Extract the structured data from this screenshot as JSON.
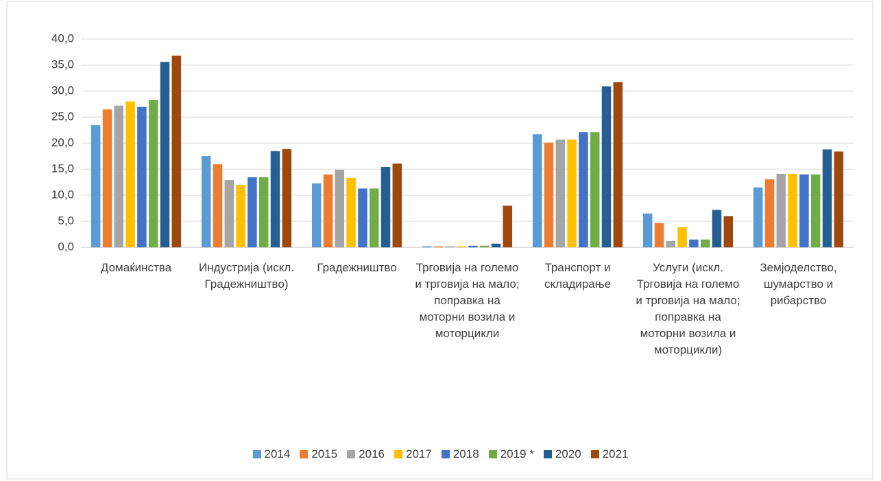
{
  "chart_data": {
    "type": "bar",
    "categories": [
      "Домаќинства",
      "Индустрија (искл. Градежништво)",
      "Градежништво",
      "Трговија на големо и трговија на мало; поправка на моторни возила и моторцикли",
      "Транспорт и складирање",
      "Услуги (искл. Трговија на големо и трговија на мало; поправка на моторни возила и моторцикли)",
      "Земјоделство, шумарство и рибарство"
    ],
    "series": [
      {
        "name": "2014",
        "color": "#5b9bd5",
        "values": [
          23.5,
          17.5,
          12.3,
          0.2,
          21.7,
          6.5,
          11.5
        ]
      },
      {
        "name": "2015",
        "color": "#ed7d31",
        "values": [
          26.5,
          16.0,
          14.0,
          0.2,
          20.1,
          4.7,
          13.1
        ]
      },
      {
        "name": "2016",
        "color": "#a5a5a5",
        "values": [
          27.2,
          12.9,
          14.9,
          0.2,
          20.7,
          1.2,
          14.1
        ]
      },
      {
        "name": "2017",
        "color": "#ffc000",
        "values": [
          28.0,
          12.0,
          13.3,
          0.2,
          20.7,
          3.9,
          14.1
        ]
      },
      {
        "name": "2018",
        "color": "#4472c4",
        "values": [
          27.0,
          13.5,
          11.3,
          0.3,
          22.1,
          1.5,
          14.0
        ]
      },
      {
        "name": "2019 *",
        "color": "#70ad47",
        "values": [
          28.3,
          13.5,
          11.3,
          0.3,
          22.1,
          1.5,
          14.0
        ]
      },
      {
        "name": "2020",
        "color": "#255e91",
        "values": [
          35.6,
          18.5,
          15.4,
          0.7,
          30.9,
          7.2,
          18.8
        ]
      },
      {
        "name": "2021",
        "color": "#9e480e",
        "values": [
          36.8,
          18.9,
          16.1,
          8.0,
          31.7,
          6.0,
          18.4
        ]
      }
    ],
    "ylim": [
      0,
      40
    ],
    "yticks": [
      {
        "value": 0,
        "label": "0,0"
      },
      {
        "value": 5,
        "label": "5,0"
      },
      {
        "value": 10,
        "label": "10,0"
      },
      {
        "value": 15,
        "label": "15,0"
      },
      {
        "value": 20,
        "label": "20,0"
      },
      {
        "value": 25,
        "label": "25,0"
      },
      {
        "value": 30,
        "label": "30,0"
      },
      {
        "value": 35,
        "label": "35,0"
      },
      {
        "value": 40,
        "label": "40,0"
      }
    ],
    "grid": true,
    "legend": "bottom"
  }
}
